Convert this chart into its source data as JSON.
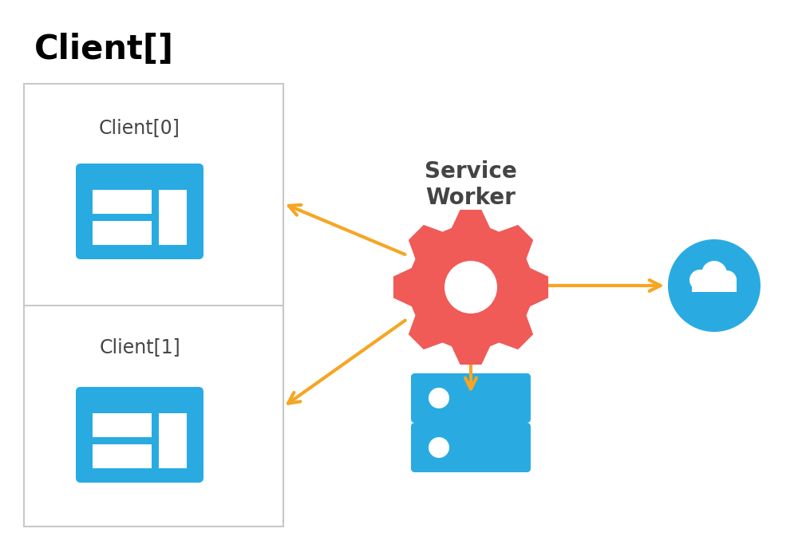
{
  "bg_color": "#ffffff",
  "title_text": "Client[]",
  "title_fontsize": 30,
  "title_fontweight": "bold",
  "client_box_color": "#c8c8c8",
  "client0_label": "Client[0]",
  "client1_label": "Client[1]",
  "sw_label_line1": "Service",
  "sw_label_line2": "Worker",
  "label_color": "#444444",
  "label_fontsize": 17,
  "sw_label_fontsize": 20,
  "browser_blue": "#29abe2",
  "gear_red": "#f05a57",
  "arrow_orange": "#f5a623",
  "cloud_blue": "#29abe2",
  "db_blue": "#29abe2",
  "arrow_lw": 3.0,
  "arrow_mutation": 25
}
